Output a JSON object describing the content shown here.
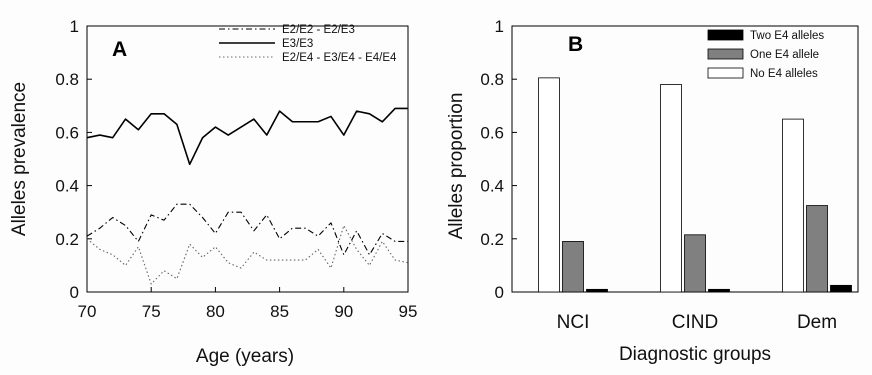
{
  "chart_data": [
    {
      "type": "line",
      "panel_label": "A",
      "xlabel": "Age (years)",
      "ylabel": "Alleles prevalence",
      "xlim": [
        70,
        95
      ],
      "ylim": [
        0,
        1
      ],
      "xticks": [
        "70",
        "75",
        "80",
        "85",
        "90",
        "95"
      ],
      "yticks": [
        "0",
        "0.2",
        "0.4",
        "0.6",
        "0.8",
        "1"
      ],
      "legend_position": "top-right",
      "x": [
        70,
        71,
        72,
        73,
        74,
        75,
        76,
        77,
        78,
        79,
        80,
        81,
        82,
        83,
        84,
        85,
        86,
        87,
        88,
        89,
        90,
        91,
        92,
        93,
        94,
        95
      ],
      "series": [
        {
          "name": "E2/E2 - E2/E3",
          "style": "dashdot",
          "values": [
            0.21,
            0.24,
            0.28,
            0.25,
            0.19,
            0.29,
            0.27,
            0.33,
            0.33,
            0.28,
            0.22,
            0.3,
            0.3,
            0.23,
            0.29,
            0.2,
            0.24,
            0.24,
            0.21,
            0.26,
            0.14,
            0.23,
            0.14,
            0.22,
            0.19,
            0.19
          ]
        },
        {
          "name": "E3/E3",
          "style": "solid",
          "values": [
            0.58,
            0.59,
            0.58,
            0.65,
            0.61,
            0.67,
            0.67,
            0.63,
            0.48,
            0.58,
            0.62,
            0.59,
            0.62,
            0.65,
            0.59,
            0.68,
            0.64,
            0.64,
            0.64,
            0.66,
            0.59,
            0.68,
            0.67,
            0.64,
            0.69,
            0.69
          ]
        },
        {
          "name": "E2/E4 - E3/E4 - E4/E4",
          "style": "dotted",
          "values": [
            0.2,
            0.16,
            0.14,
            0.1,
            0.17,
            0.03,
            0.08,
            0.05,
            0.18,
            0.13,
            0.17,
            0.11,
            0.09,
            0.15,
            0.12,
            0.12,
            0.12,
            0.12,
            0.16,
            0.09,
            0.25,
            0.16,
            0.1,
            0.19,
            0.12,
            0.11
          ]
        }
      ]
    },
    {
      "type": "bar",
      "panel_label": "B",
      "xlabel": "Diagnostic groups",
      "ylabel": "Alleles proportion",
      "ylim": [
        0,
        1
      ],
      "yticks": [
        "0",
        "0.2",
        "0.4",
        "0.6",
        "0.8",
        "1"
      ],
      "legend_position": "top-right",
      "categories": [
        "NCI",
        "CIND",
        "Dem"
      ],
      "series": [
        {
          "name": "Two E4 alleles",
          "color": "#000000",
          "values": [
            0.01,
            0.01,
            0.025
          ]
        },
        {
          "name": "One E4 allele",
          "color": "#808080",
          "values": [
            0.19,
            0.215,
            0.325
          ]
        },
        {
          "name": "No E4 alleles",
          "color": "#ffffff",
          "values": [
            0.805,
            0.78,
            0.65
          ]
        }
      ]
    }
  ]
}
